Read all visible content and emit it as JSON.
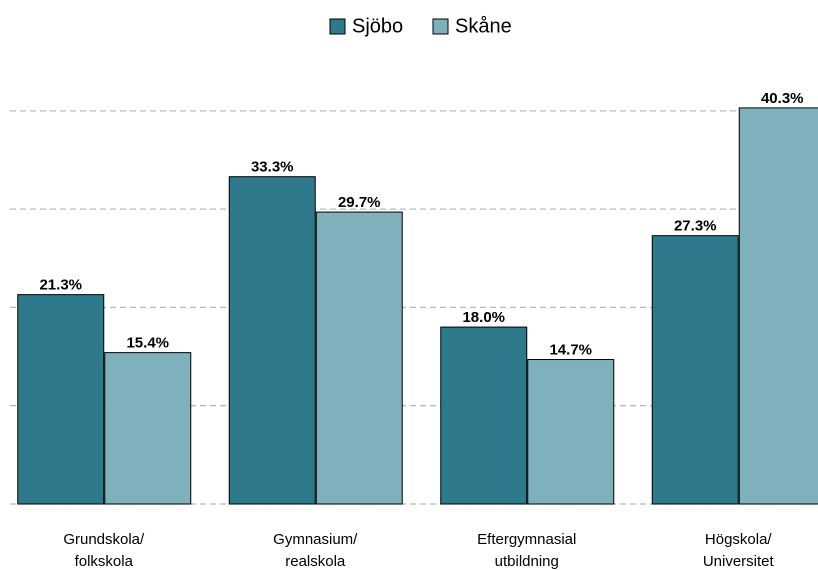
{
  "chart_data": {
    "type": "bar",
    "categories": [
      [
        "Grundskola/",
        "folkskola"
      ],
      [
        "Gymnasium/",
        "realskola"
      ],
      [
        "Eftergymnasial",
        "utbildning"
      ],
      [
        "Högskola/",
        "Universitet"
      ]
    ],
    "series": [
      {
        "name": "Sjöbo",
        "color": "#2e7a8c",
        "values": [
          21.3,
          33.3,
          18.0,
          27.3
        ],
        "value_labels": [
          "21.3%",
          "33.3%",
          "18.0%",
          "27.3%"
        ]
      },
      {
        "name": "Skåne",
        "color": "#7fb1bc",
        "values": [
          15.4,
          29.7,
          14.7,
          40.3
        ],
        "value_labels": [
          "15.4%",
          "29.7%",
          "14.7%",
          "40.3%"
        ]
      }
    ],
    "ylim": [
      0,
      45
    ],
    "yticks": [
      0,
      10,
      20,
      30,
      40
    ],
    "grid": true,
    "legend": "top"
  }
}
